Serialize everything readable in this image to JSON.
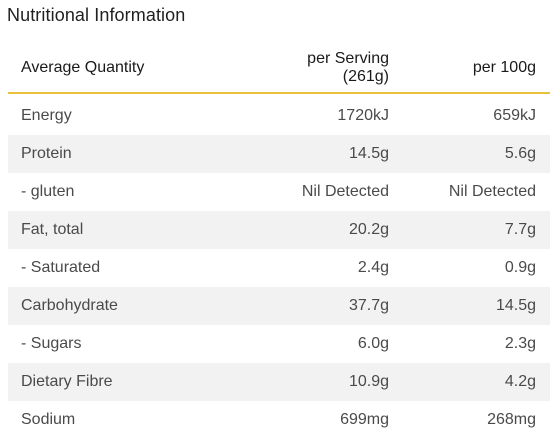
{
  "title": "Nutritional Information",
  "headers": [
    "Average Quantity",
    "per Serving (261g)",
    "per 100g"
  ],
  "rows": [
    {
      "name": "Energy",
      "serving": "1720kJ",
      "per100": "659kJ"
    },
    {
      "name": "Protein",
      "serving": "14.5g",
      "per100": "5.6g"
    },
    {
      "name": "- gluten",
      "serving": "Nil Detected",
      "per100": "Nil Detected"
    },
    {
      "name": "Fat, total",
      "serving": "20.2g",
      "per100": "7.7g"
    },
    {
      "name": "- Saturated",
      "serving": "2.4g",
      "per100": "0.9g"
    },
    {
      "name": "Carbohydrate",
      "serving": "37.7g",
      "per100": "14.5g"
    },
    {
      "name": "- Sugars",
      "serving": "6.0g",
      "per100": "2.3g"
    },
    {
      "name": "Dietary Fibre",
      "serving": "10.9g",
      "per100": "4.2g"
    },
    {
      "name": "Sodium",
      "serving": "699mg",
      "per100": "268mg"
    }
  ],
  "colors": {
    "header_rule": "#e8c23a",
    "row_shade": "#f2f2f2"
  }
}
